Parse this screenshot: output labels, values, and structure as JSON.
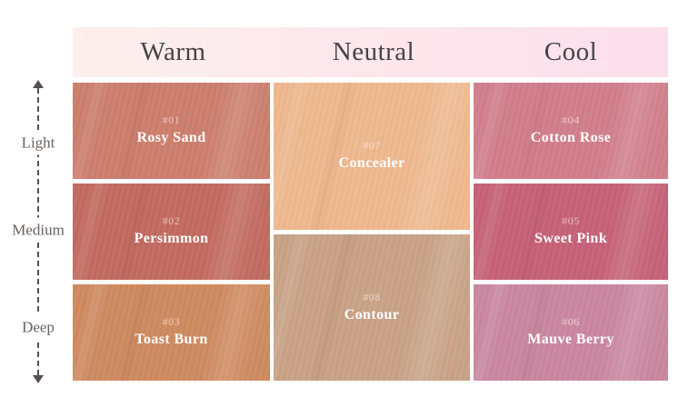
{
  "header": {
    "columns": [
      {
        "label": "Warm"
      },
      {
        "label": "Neutral"
      },
      {
        "label": "Cool"
      }
    ],
    "gradient_from": "#fdefed",
    "gradient_to": "#fbdfeb",
    "text_color": "#474245"
  },
  "depth_axis": {
    "labels": [
      {
        "label": "Light"
      },
      {
        "label": "Medium"
      },
      {
        "label": "Deep"
      }
    ],
    "arrow_color": "#57504d",
    "label_color": "#6b615e"
  },
  "swatches": [
    {
      "number": "#01",
      "name": "Rosy Sand",
      "color": "#cc7e6d",
      "tone": "warm",
      "depth": "light"
    },
    {
      "number": "#02",
      "name": "Persimmon",
      "color": "#c26a5f",
      "tone": "warm",
      "depth": "medium"
    },
    {
      "number": "#03",
      "name": "Toast Burn",
      "color": "#ce8a60",
      "tone": "warm",
      "depth": "deep"
    },
    {
      "number": "#07",
      "name": "Concealer",
      "color": "#eeb88e",
      "tone": "neutral",
      "depth": "light"
    },
    {
      "number": "#08",
      "name": "Contour",
      "color": "#c8a286",
      "tone": "neutral",
      "depth": "deep"
    },
    {
      "number": "#04",
      "name": "Cotton Rose",
      "color": "#d17e8c",
      "tone": "cool",
      "depth": "light"
    },
    {
      "number": "#05",
      "name": "Sweet Pink",
      "color": "#c66177",
      "tone": "cool",
      "depth": "medium"
    },
    {
      "number": "#06",
      "name": "Mauve Berry",
      "color": "#c9879f",
      "tone": "cool",
      "depth": "deep"
    }
  ]
}
